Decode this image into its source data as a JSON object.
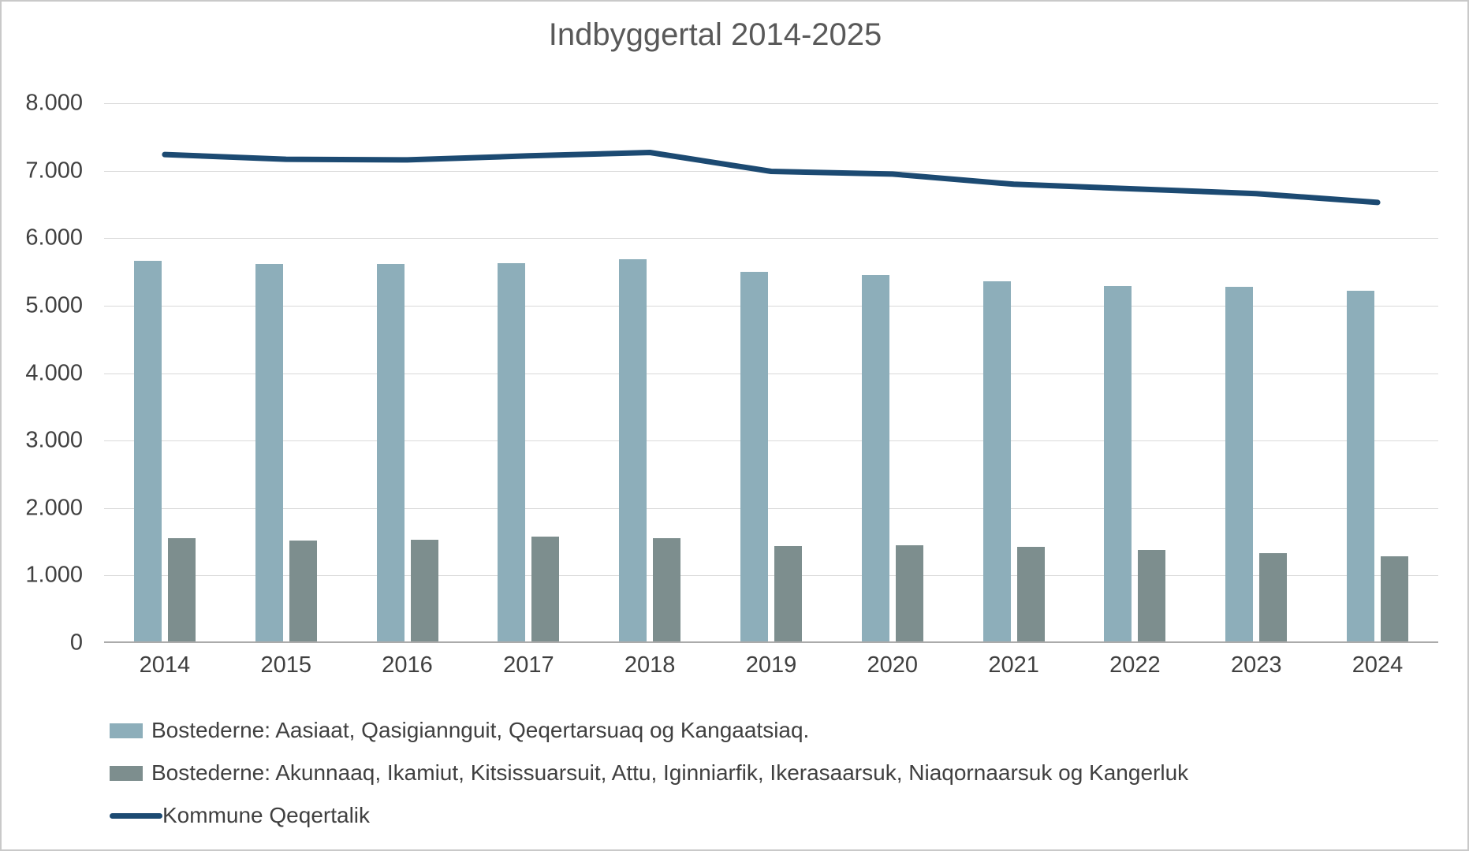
{
  "chart_data": {
    "type": "combo-bar-line",
    "title": "Indbyggertal 2014-2025",
    "categories": [
      "2014",
      "2015",
      "2016",
      "2017",
      "2018",
      "2019",
      "2020",
      "2021",
      "2022",
      "2023",
      "2024"
    ],
    "series": [
      {
        "name": "Bostederne: Aasiaat, Qasigiannguit, Qeqertarsuaq og Kangaatsiaq.",
        "type": "bar",
        "color": "#8daeba",
        "values": [
          5670,
          5620,
          5620,
          5630,
          5690,
          5500,
          5460,
          5360,
          5290,
          5280,
          5220
        ]
      },
      {
        "name": "Bostederne: Akunnaaq, Ikamiut, Kitsissuarsuit, Attu, Iginniarfik, Ikerasaarsuk, Niaqornaarsuk og Kangerluk",
        "type": "bar",
        "color": "#7d8e8e",
        "values": [
          1550,
          1520,
          1530,
          1580,
          1550,
          1440,
          1450,
          1420,
          1380,
          1330,
          1280
        ]
      },
      {
        "name": "Kommune Qeqertalik",
        "type": "line",
        "color": "#1c4a72",
        "values": [
          7240,
          7170,
          7160,
          7220,
          7270,
          6990,
          6950,
          6800,
          6730,
          6660,
          6530
        ]
      }
    ],
    "ylim": [
      0,
      8000
    ],
    "y_tick_step": 1000,
    "y_tick_labels": [
      "0",
      "1.000",
      "2.000",
      "3.000",
      "4.000",
      "5.000",
      "6.000",
      "7.000",
      "8.000"
    ],
    "grid": true,
    "legend_position": "bottom-left",
    "colors": {
      "title_text": "#595959",
      "axis_text": "#404040",
      "gridline": "#d9d9d9",
      "axis_line": "#ababab",
      "background": "#ffffff",
      "frame_border": "#c9c9c9"
    }
  }
}
